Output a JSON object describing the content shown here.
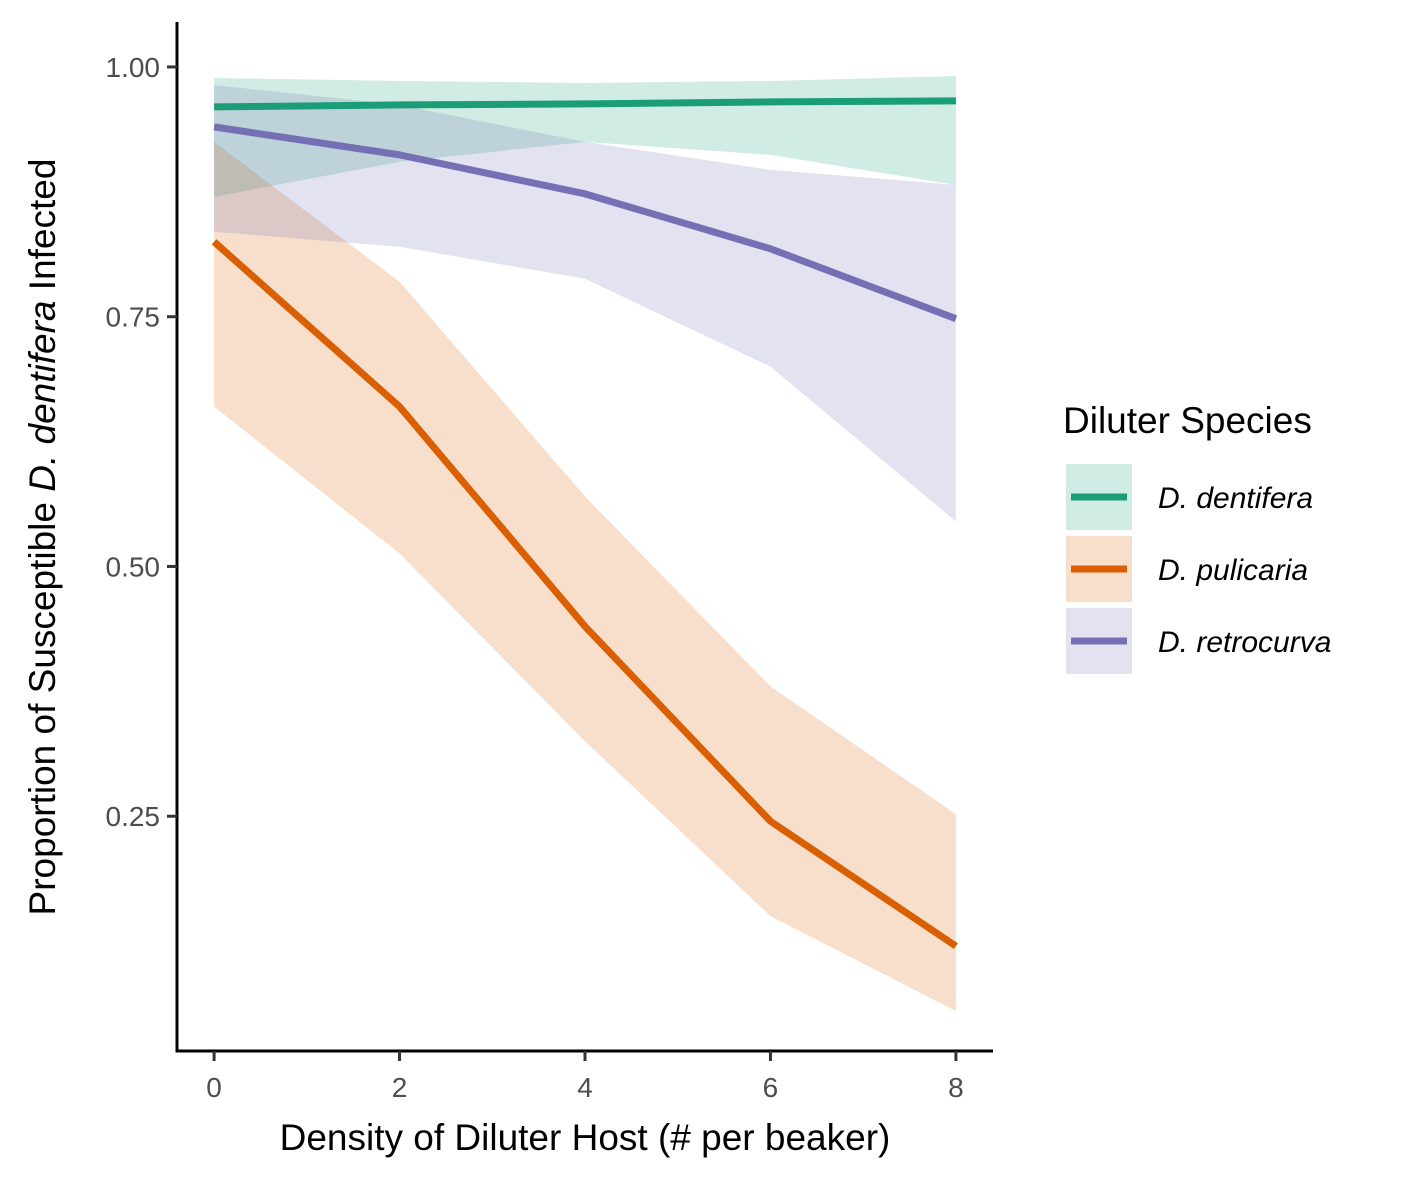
{
  "chart_data": {
    "type": "line",
    "xlabel": "Density of Diluter Host (# per beaker)",
    "ylabel_parts": [
      "Proportion of Susceptible ",
      "D. dentifera",
      " Infected"
    ],
    "xlim": [
      -0.4,
      8.4
    ],
    "ylim": [
      0.015,
      1.045
    ],
    "x_ticks": [
      0,
      2,
      4,
      6,
      8
    ],
    "x_tick_labels": [
      "0",
      "2",
      "4",
      "6",
      "8"
    ],
    "y_ticks": [
      0.25,
      0.5,
      0.75,
      1.0
    ],
    "y_tick_labels": [
      "0.25",
      "0.50",
      "0.75",
      "1.00"
    ],
    "grid": false,
    "legend": {
      "title": "Diluter Species",
      "position": "right"
    },
    "series": [
      {
        "name": "D. dentifera",
        "color": "#1b9e77",
        "x": [
          0,
          2,
          4,
          6,
          8
        ],
        "y": [
          0.96,
          0.962,
          0.963,
          0.965,
          0.966
        ],
        "lower": [
          0.87,
          0.905,
          0.925,
          0.912,
          0.882
        ],
        "upper": [
          0.989,
          0.986,
          0.984,
          0.986,
          0.991
        ]
      },
      {
        "name": "D. pulicaria",
        "color": "#d95f02",
        "x": [
          0,
          2,
          4,
          6,
          8
        ],
        "y": [
          0.825,
          0.66,
          0.44,
          0.245,
          0.12
        ],
        "lower": [
          0.66,
          0.513,
          0.325,
          0.15,
          0.055
        ],
        "upper": [
          0.925,
          0.785,
          0.57,
          0.38,
          0.252
        ]
      },
      {
        "name": "D. retrocurva",
        "color": "#7570b3",
        "x": [
          0,
          2,
          4,
          6,
          8
        ],
        "y": [
          0.94,
          0.912,
          0.873,
          0.818,
          0.748
        ],
        "lower": [
          0.835,
          0.82,
          0.788,
          0.7,
          0.545
        ],
        "upper": [
          0.982,
          0.962,
          0.925,
          0.897,
          0.882
        ]
      }
    ]
  }
}
